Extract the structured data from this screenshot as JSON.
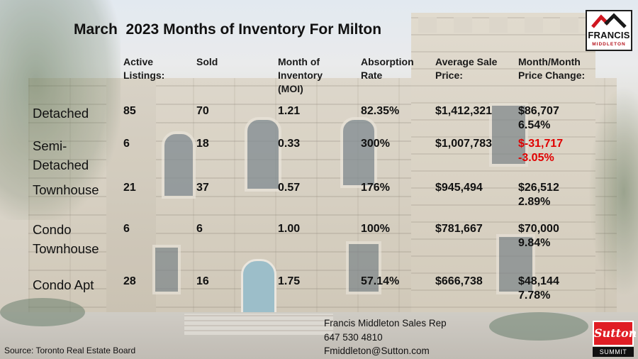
{
  "title": "March  2023 Months of Inventory For Milton",
  "logo": {
    "name": "FRANCIS",
    "sub": "MIDDLETON"
  },
  "table": {
    "headers": [
      "Active\nListings:",
      "Sold",
      "Month of\nInventory\n(MOI)",
      "Absorption\nRate",
      "Average Sale\nPrice:",
      "Month/Month\nPrice Change:"
    ],
    "rows": [
      {
        "label": "Detached",
        "active": "85",
        "sold": "70",
        "moi": "1.21",
        "absorption": "82.35%",
        "avg_price": "$1,412,321",
        "change": "$86,707\n6.54%",
        "negative": false
      },
      {
        "label": "Semi-\nDetached",
        "active": "6",
        "sold": "18",
        "moi": "0.33",
        "absorption": "300%",
        "avg_price": "$1,007,783",
        "change": "$-31,717\n-3.05%",
        "negative": true
      },
      {
        "label": "Townhouse",
        "active": "21",
        "sold": "37",
        "moi": "0.57",
        "absorption": "176%",
        "avg_price": "$945,494",
        "change": "$26,512\n2.89%",
        "negative": false
      },
      {
        "label": "Condo\nTownhouse",
        "active": "6",
        "sold": "6",
        "moi": "1.00",
        "absorption": "100%",
        "avg_price": "$781,667",
        "change": "$70,000\n9.84%",
        "negative": false
      },
      {
        "label": "Condo Apt",
        "active": "28",
        "sold": "16",
        "moi": "1.75",
        "absorption": "57.14%",
        "avg_price": "$666,738",
        "change": "$48,144\n7.78%",
        "negative": false
      }
    ]
  },
  "footer": {
    "source": "Source: Toronto Real Estate Board",
    "contact_name": "Francis Middleton Sales Rep",
    "contact_phone": "647 530 4810",
    "contact_email": "Fmiddleton@Sutton.com"
  },
  "brand": {
    "name": "Sutton",
    "sub": "SUMMIT"
  },
  "colors": {
    "negative": "#e00000",
    "brand_red": "#e01d24",
    "logo_red": "#b5121b"
  }
}
